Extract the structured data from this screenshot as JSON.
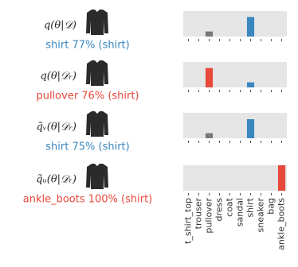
{
  "chart_data": [
    {
      "type": "bar",
      "label": "q(θ|𝒟)",
      "caption": "shirt 77% (shirt)",
      "caption_color": "#3a87c0",
      "ylim": [
        0,
        1
      ],
      "values": [
        0,
        0,
        0.2,
        0,
        0,
        0,
        0.77,
        0,
        0,
        0
      ],
      "colors": [
        "#777777",
        "#777777",
        "#777777",
        "#777777",
        "#777777",
        "#777777",
        "#3a87c0",
        "#777777",
        "#777777",
        "#777777"
      ]
    },
    {
      "type": "bar",
      "label": "q(θ|𝒟ᵣ)",
      "caption": "pullover 76% (shirt)",
      "caption_color": "#e8483a",
      "ylim": [
        0,
        1
      ],
      "values": [
        0,
        0,
        0.76,
        0,
        0,
        0,
        0.2,
        0,
        0,
        0
      ],
      "colors": [
        "#777777",
        "#777777",
        "#e8483a",
        "#777777",
        "#777777",
        "#777777",
        "#3a87c0",
        "#777777",
        "#777777",
        "#777777"
      ]
    },
    {
      "type": "bar",
      "label": "q̃ᵥ(θ|𝒟ᵣ)",
      "caption": "shirt 75% (shirt)",
      "caption_color": "#3a87c0",
      "ylim": [
        0,
        1
      ],
      "values": [
        0,
        0,
        0.2,
        0,
        0,
        0,
        0.75,
        0,
        0,
        0
      ],
      "colors": [
        "#777777",
        "#777777",
        "#777777",
        "#777777",
        "#777777",
        "#777777",
        "#3a87c0",
        "#777777",
        "#777777",
        "#777777"
      ]
    },
    {
      "type": "bar",
      "label": "q̃ᵤ(θ|𝒟ᵣ)",
      "caption": "ankle_boots 100% (shirt)",
      "caption_color": "#e8483a",
      "ylim": [
        0,
        1
      ],
      "categories": [
        "t_shirt_top",
        "trouser",
        "pullover",
        "dress",
        "coat",
        "sandal",
        "shirt",
        "sneaker",
        "bag",
        "ankle_boots"
      ],
      "values": [
        0,
        0,
        0,
        0,
        0,
        0,
        0,
        0,
        0,
        1.0
      ],
      "colors": [
        "#777777",
        "#777777",
        "#777777",
        "#777777",
        "#777777",
        "#777777",
        "#777777",
        "#777777",
        "#777777",
        "#e8483a"
      ]
    }
  ]
}
